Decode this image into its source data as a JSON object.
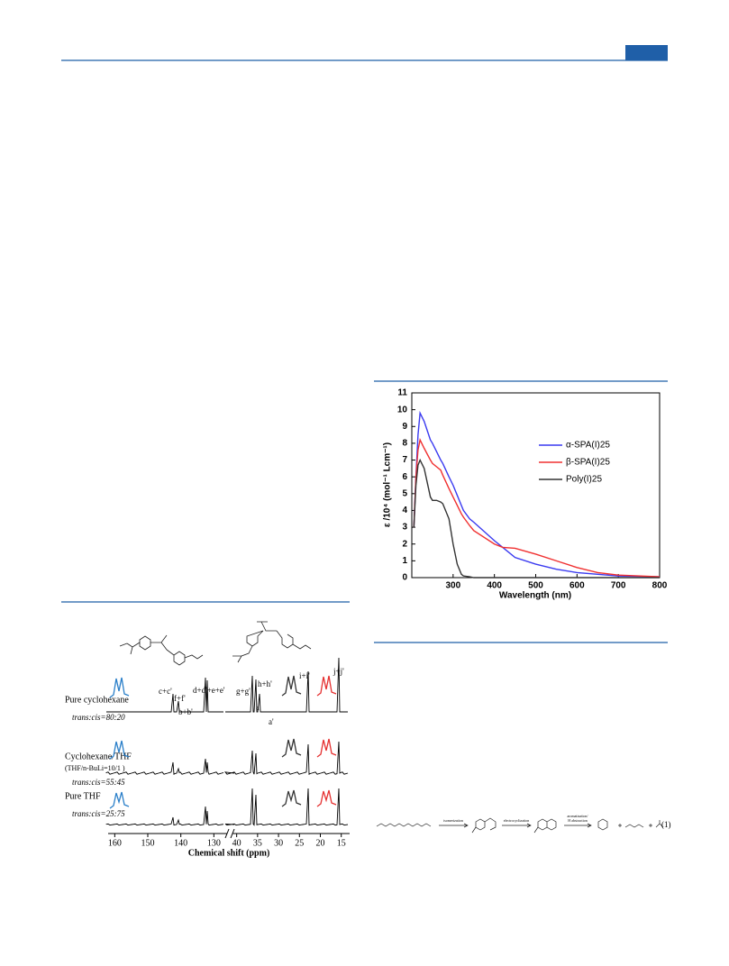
{
  "chart_data": {
    "type": "line",
    "x_label": "Wavelength (nm)",
    "y_label": "ε /10⁴ (mol⁻¹ Lcm⁻¹)",
    "x": [
      205,
      210,
      215,
      220,
      230,
      245,
      250,
      260,
      270,
      275,
      290,
      300,
      310,
      320,
      325,
      340,
      350,
      400,
      420,
      450,
      500,
      550,
      600,
      650,
      700,
      800
    ],
    "series": [
      {
        "name": "α-SPA(I)25",
        "color": "#3a3af0",
        "values": [
          3,
          6,
          8.5,
          9.8,
          9.3,
          8.2,
          8,
          7.5,
          7,
          6.8,
          6,
          5.5,
          4.9,
          4.3,
          4,
          3.5,
          3.3,
          2.2,
          1.8,
          1.2,
          0.8,
          0.5,
          0.3,
          0.2,
          0.1,
          0.05
        ]
      },
      {
        "name": "β-SPA(I)25",
        "color": "#f03030",
        "values": [
          3,
          6,
          7.6,
          8.2,
          7.7,
          7,
          6.8,
          6.6,
          6.4,
          6.1,
          5.3,
          4.8,
          4.3,
          3.8,
          3.6,
          3.1,
          2.8,
          2,
          1.8,
          1.75,
          1.4,
          1,
          0.6,
          0.3,
          0.15,
          0.05
        ]
      },
      {
        "name": "Poly(I)25",
        "color": "#333333",
        "values": [
          3,
          5.5,
          6.7,
          7,
          6.5,
          4.8,
          4.6,
          4.6,
          4.5,
          4.4,
          3.5,
          2,
          0.8,
          0.2,
          0.1,
          0.05,
          0,
          0,
          0,
          0,
          0,
          0,
          0,
          0,
          0,
          0
        ]
      }
    ],
    "xlim": [
      200,
      800
    ],
    "xticks": [
      300,
      400,
      500,
      600,
      700,
      800
    ],
    "ylim": [
      0,
      11
    ],
    "yticks": [
      0,
      1,
      2,
      3,
      4,
      5,
      6,
      7,
      8,
      9,
      10,
      11
    ],
    "legend": "upper right"
  },
  "nmr_figure": {
    "conditions": [
      {
        "label": "Pure cyclohexane",
        "ratio": "trans:cis=80:20"
      },
      {
        "label": "Cyclohexane/THF",
        "note": "(THF/n-BuLi=10/1 )",
        "ratio": "trans:cis=55:45"
      },
      {
        "label": "Pure THF",
        "ratio": "trans:cis=25:75"
      }
    ],
    "peaks": [
      "c+c'",
      "f+f'",
      "b+b'",
      "d+d'+e+e'",
      "g+g'",
      "h+h'",
      "i+i'",
      "j+j'",
      "a",
      "a'"
    ],
    "xticks_left": [
      160,
      150,
      140,
      130
    ],
    "xlim_left": [
      162,
      126
    ],
    "xticks_right": [
      40,
      35,
      30,
      25,
      20,
      15
    ],
    "xlim_right": [
      41,
      13
    ],
    "x_label": "Chemical shift (ppm)"
  },
  "scheme": {
    "steps": [
      "isomerization",
      "electrocyclization",
      "aromatization/",
      "H abstraction"
    ],
    "number": "(1)"
  }
}
